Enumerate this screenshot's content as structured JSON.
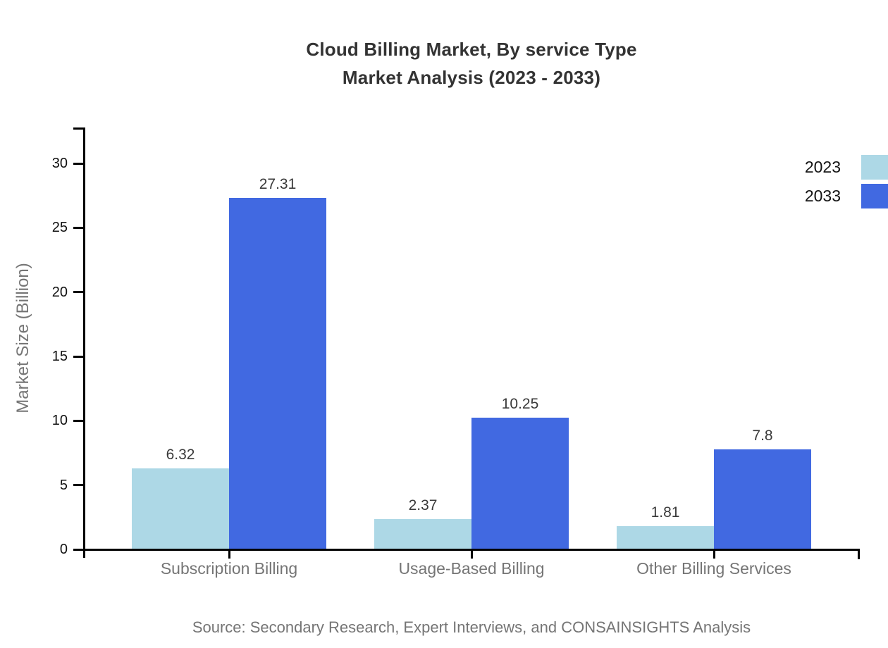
{
  "title": {
    "line1": "Cloud Billing Market, By service Type",
    "line2": "Market Analysis (2023 - 2033)"
  },
  "source": "Source: Secondary Research, Expert Interviews, and CONSAINSIGHTS Analysis",
  "chart_data": {
    "type": "bar",
    "title": "Cloud Billing Market, By service Type — Market Analysis (2023 - 2033)",
    "categories": [
      "Subscription Billing",
      "Usage-Based Billing",
      "Other Billing Services"
    ],
    "series": [
      {
        "name": "2023",
        "color": "#ADD8E6",
        "values": [
          6.32,
          2.37,
          1.81
        ],
        "labels": [
          "6.32",
          "2.37",
          "1.81"
        ]
      },
      {
        "name": "2033",
        "color": "#4169E1",
        "values": [
          27.31,
          10.25,
          7.8
        ],
        "labels": [
          "27.31",
          "10.25",
          "7.8"
        ]
      }
    ],
    "xlabel": "",
    "ylabel": "Market Size (Billion)",
    "ylim": [
      0,
      32.8
    ],
    "yticks": [
      0,
      5,
      10,
      15,
      20,
      25,
      30
    ],
    "grid": false,
    "legend_position": "top-right",
    "axis_color": "#000000",
    "background": "#ffffff"
  }
}
